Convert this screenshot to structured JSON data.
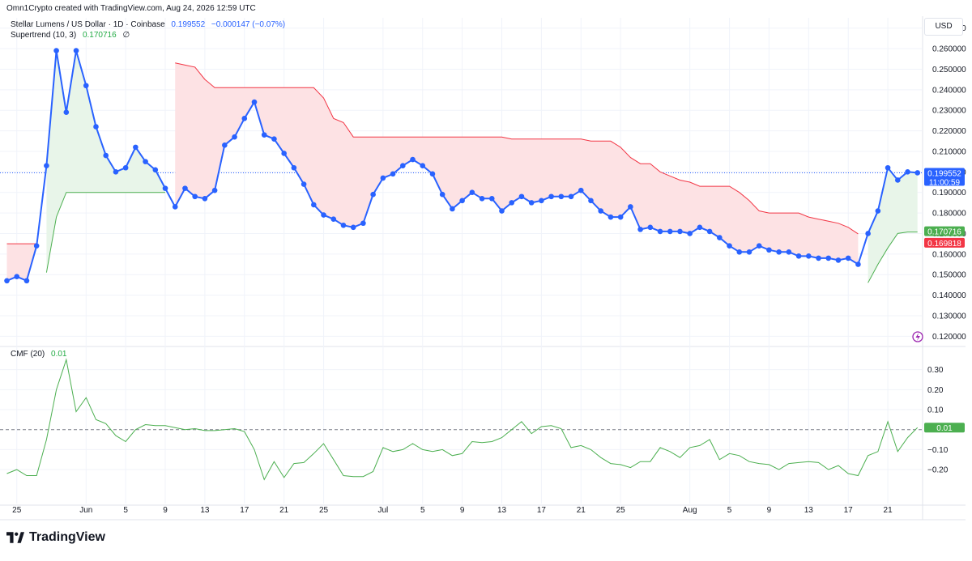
{
  "header": {
    "credit": "Omn1Crypto created with TradingView.com, Aug 24, 2026 12:59 UTC"
  },
  "legend": {
    "symbol": "Stellar Lumens / US Dollar · 1D · Coinbase",
    "price": "0.199552",
    "change": "−0.000147 (−0.07%)",
    "supertrend_label": "Supertrend (10, 3)",
    "supertrend_value": "0.170716",
    "supertrend_symbol": "∅",
    "cmf_label": "CMF (20)",
    "cmf_value": "0.01"
  },
  "currency": "USD",
  "price_tag": {
    "value": "0.199552",
    "countdown": "11:00:59"
  },
  "supertrend_tags": {
    "up": "0.170716",
    "down": "0.169818"
  },
  "cmf_tag": "0.01",
  "brand": "TradingView",
  "icons": {
    "brand_logo": "tradingview-logo-icon",
    "alert": "lightning-icon"
  },
  "colors": {
    "price_line": "#2962ff",
    "supertrend_up": "#4caf50",
    "supertrend_down": "#f23645",
    "fill_up": "#e8f5e9",
    "fill_down": "#fde2e4",
    "cmf": "#4caf50",
    "grid": "#f0f3fa"
  },
  "chart_data": [
    {
      "type": "line",
      "title": "Stellar Lumens / US Dollar · 1D · Coinbase",
      "y_axis_ticks": [
        "0.270000",
        "0.260000",
        "0.250000",
        "0.240000",
        "0.230000",
        "0.220000",
        "0.210000",
        "0.200000",
        "0.190000",
        "0.180000",
        "0.170000",
        "0.160000",
        "0.150000",
        "0.140000",
        "0.130000",
        "0.120000"
      ],
      "ylim": [
        0.115,
        0.275
      ],
      "x_axis_ticks": [
        "25",
        "Jun",
        "5",
        "9",
        "13",
        "17",
        "21",
        "25",
        "Jul",
        "5",
        "9",
        "13",
        "17",
        "21",
        "25",
        "Aug",
        "5",
        "9",
        "13",
        "17",
        "21"
      ],
      "x_range_days": [
        "2026-05-24",
        "2026-08-24"
      ],
      "grid": true,
      "series": [
        {
          "name": "Stellar Lumens / US Dollar",
          "x": [
            "2026-05-24",
            "2026-05-25",
            "2026-05-26",
            "2026-05-27",
            "2026-05-28",
            "2026-05-29",
            "2026-05-30",
            "2026-05-31",
            "2026-06-01",
            "2026-06-02",
            "2026-06-03",
            "2026-06-04",
            "2026-06-05",
            "2026-06-06",
            "2026-06-07",
            "2026-06-08",
            "2026-06-09",
            "2026-06-10",
            "2026-06-11",
            "2026-06-12",
            "2026-06-13",
            "2026-06-14",
            "2026-06-15",
            "2026-06-16",
            "2026-06-17",
            "2026-06-18",
            "2026-06-19",
            "2026-06-20",
            "2026-06-21",
            "2026-06-22",
            "2026-06-23",
            "2026-06-24",
            "2026-06-25",
            "2026-06-26",
            "2026-06-27",
            "2026-06-28",
            "2026-06-29",
            "2026-06-30",
            "2026-07-01",
            "2026-07-02",
            "2026-07-03",
            "2026-07-04",
            "2026-07-05",
            "2026-07-06",
            "2026-07-07",
            "2026-07-08",
            "2026-07-09",
            "2026-07-10",
            "2026-07-11",
            "2026-07-12",
            "2026-07-13",
            "2026-07-14",
            "2026-07-15",
            "2026-07-16",
            "2026-07-17",
            "2026-07-18",
            "2026-07-19",
            "2026-07-20",
            "2026-07-21",
            "2026-07-22",
            "2026-07-23",
            "2026-07-24",
            "2026-07-25",
            "2026-07-26",
            "2026-07-27",
            "2026-07-28",
            "2026-07-29",
            "2026-07-30",
            "2026-07-31",
            "2026-08-01",
            "2026-08-02",
            "2026-08-03",
            "2026-08-04",
            "2026-08-05",
            "2026-08-06",
            "2026-08-07",
            "2026-08-08",
            "2026-08-09",
            "2026-08-10",
            "2026-08-11",
            "2026-08-12",
            "2026-08-13",
            "2026-08-14",
            "2026-08-15",
            "2026-08-16",
            "2026-08-17",
            "2026-08-18",
            "2026-08-19",
            "2026-08-20",
            "2026-08-21",
            "2026-08-22",
            "2026-08-23",
            "2026-08-24"
          ],
          "values": [
            0.147,
            0.149,
            0.147,
            0.164,
            0.203,
            0.259,
            0.229,
            0.259,
            0.242,
            0.222,
            0.208,
            0.2,
            0.202,
            0.212,
            0.205,
            0.201,
            0.192,
            0.183,
            0.192,
            0.188,
            0.187,
            0.191,
            0.213,
            0.217,
            0.226,
            0.234,
            0.218,
            0.216,
            0.209,
            0.202,
            0.194,
            0.184,
            0.179,
            0.177,
            0.174,
            0.173,
            0.175,
            0.189,
            0.197,
            0.199,
            0.203,
            0.206,
            0.203,
            0.199,
            0.189,
            0.182,
            0.186,
            0.19,
            0.187,
            0.187,
            0.181,
            0.185,
            0.188,
            0.185,
            0.186,
            0.188,
            0.188,
            0.188,
            0.191,
            0.186,
            0.181,
            0.178,
            0.178,
            0.183,
            0.172,
            0.173,
            0.171,
            0.171,
            0.171,
            0.17,
            0.173,
            0.171,
            0.168,
            0.164,
            0.161,
            0.161,
            0.164,
            0.162,
            0.161,
            0.161,
            0.159,
            0.159,
            0.158,
            0.158,
            0.157,
            0.158,
            0.155,
            0.17,
            0.181,
            0.202,
            0.196,
            0.2,
            0.199552
          ]
        },
        {
          "name": "Supertrend (10, 3)",
          "segments": [
            {
              "trend": "down",
              "x": [
                "2026-05-24",
                "2026-05-25",
                "2026-05-26",
                "2026-05-27"
              ],
              "values": [
                0.165,
                0.165,
                0.165,
                0.165
              ]
            },
            {
              "trend": "up",
              "x": [
                "2026-05-28",
                "2026-05-29",
                "2026-05-30",
                "2026-05-31",
                "2026-06-01",
                "2026-06-02",
                "2026-06-03",
                "2026-06-04",
                "2026-06-05",
                "2026-06-06",
                "2026-06-07",
                "2026-06-08",
                "2026-06-09"
              ],
              "values": [
                0.151,
                0.178,
                0.19,
                0.19,
                0.19,
                0.19,
                0.19,
                0.19,
                0.19,
                0.19,
                0.19,
                0.19,
                0.19
              ]
            },
            {
              "trend": "down",
              "x": [
                "2026-06-10",
                "2026-06-11",
                "2026-06-12",
                "2026-06-13",
                "2026-06-14",
                "2026-06-15",
                "2026-06-16",
                "2026-06-17",
                "2026-06-18",
                "2026-06-19",
                "2026-06-20",
                "2026-06-21",
                "2026-06-22",
                "2026-06-23",
                "2026-06-24",
                "2026-06-25",
                "2026-06-26",
                "2026-06-27",
                "2026-06-28",
                "2026-06-29",
                "2026-06-30",
                "2026-07-01",
                "2026-07-02",
                "2026-07-03",
                "2026-07-04",
                "2026-07-05",
                "2026-07-06",
                "2026-07-07",
                "2026-07-08",
                "2026-07-09",
                "2026-07-10",
                "2026-07-11",
                "2026-07-12",
                "2026-07-13",
                "2026-07-14",
                "2026-07-15",
                "2026-07-16",
                "2026-07-17",
                "2026-07-18",
                "2026-07-19",
                "2026-07-20",
                "2026-07-21",
                "2026-07-22",
                "2026-07-23",
                "2026-07-24",
                "2026-07-25",
                "2026-07-26",
                "2026-07-27",
                "2026-07-28",
                "2026-07-29",
                "2026-07-30",
                "2026-07-31",
                "2026-08-01",
                "2026-08-02",
                "2026-08-03",
                "2026-08-04",
                "2026-08-05",
                "2026-08-06",
                "2026-08-07",
                "2026-08-08",
                "2026-08-09",
                "2026-08-10",
                "2026-08-11",
                "2026-08-12",
                "2026-08-13",
                "2026-08-14",
                "2026-08-15",
                "2026-08-16",
                "2026-08-17",
                "2026-08-18"
              ],
              "values": [
                0.253,
                0.252,
                0.251,
                0.245,
                0.241,
                0.241,
                0.241,
                0.241,
                0.241,
                0.241,
                0.241,
                0.241,
                0.241,
                0.241,
                0.241,
                0.236,
                0.226,
                0.224,
                0.217,
                0.217,
                0.217,
                0.217,
                0.217,
                0.217,
                0.217,
                0.217,
                0.217,
                0.217,
                0.217,
                0.217,
                0.217,
                0.217,
                0.217,
                0.217,
                0.216,
                0.216,
                0.216,
                0.216,
                0.216,
                0.216,
                0.216,
                0.216,
                0.215,
                0.215,
                0.215,
                0.212,
                0.207,
                0.204,
                0.204,
                0.2,
                0.198,
                0.196,
                0.195,
                0.193,
                0.193,
                0.193,
                0.193,
                0.19,
                0.186,
                0.181,
                0.18,
                0.18,
                0.18,
                0.18,
                0.178,
                0.177,
                0.176,
                0.175,
                0.173,
                0.169818
              ]
            },
            {
              "trend": "up",
              "x": [
                "2026-08-19",
                "2026-08-20",
                "2026-08-21",
                "2026-08-22",
                "2026-08-23",
                "2026-08-24"
              ],
              "values": [
                0.146,
                0.155,
                0.163,
                0.17,
                0.170716,
                0.170716
              ]
            }
          ]
        }
      ]
    },
    {
      "type": "line",
      "title": "CMF (20)",
      "y_axis_ticks": [
        "0.30",
        "0.20",
        "0.10",
        "−0.10",
        "−0.20"
      ],
      "ylim": [
        -0.37,
        0.4
      ],
      "zero_line": true,
      "series": [
        {
          "name": "CMF (20)",
          "x": [
            "2026-05-24",
            "2026-05-25",
            "2026-05-26",
            "2026-05-27",
            "2026-05-28",
            "2026-05-29",
            "2026-05-30",
            "2026-05-31",
            "2026-06-01",
            "2026-06-02",
            "2026-06-03",
            "2026-06-04",
            "2026-06-05",
            "2026-06-06",
            "2026-06-07",
            "2026-06-08",
            "2026-06-09",
            "2026-06-10",
            "2026-06-11",
            "2026-06-12",
            "2026-06-13",
            "2026-06-14",
            "2026-06-15",
            "2026-06-16",
            "2026-06-17",
            "2026-06-18",
            "2026-06-19",
            "2026-06-20",
            "2026-06-21",
            "2026-06-22",
            "2026-06-23",
            "2026-06-24",
            "2026-06-25",
            "2026-06-26",
            "2026-06-27",
            "2026-06-28",
            "2026-06-29",
            "2026-06-30",
            "2026-07-01",
            "2026-07-02",
            "2026-07-03",
            "2026-07-04",
            "2026-07-05",
            "2026-07-06",
            "2026-07-07",
            "2026-07-08",
            "2026-07-09",
            "2026-07-10",
            "2026-07-11",
            "2026-07-12",
            "2026-07-13",
            "2026-07-14",
            "2026-07-15",
            "2026-07-16",
            "2026-07-17",
            "2026-07-18",
            "2026-07-19",
            "2026-07-20",
            "2026-07-21",
            "2026-07-22",
            "2026-07-23",
            "2026-07-24",
            "2026-07-25",
            "2026-07-26",
            "2026-07-27",
            "2026-07-28",
            "2026-07-29",
            "2026-07-30",
            "2026-07-31",
            "2026-08-01",
            "2026-08-02",
            "2026-08-03",
            "2026-08-04",
            "2026-08-05",
            "2026-08-06",
            "2026-08-07",
            "2026-08-08",
            "2026-08-09",
            "2026-08-10",
            "2026-08-11",
            "2026-08-12",
            "2026-08-13",
            "2026-08-14",
            "2026-08-15",
            "2026-08-16",
            "2026-08-17",
            "2026-08-18",
            "2026-08-19",
            "2026-08-20",
            "2026-08-21",
            "2026-08-22",
            "2026-08-23",
            "2026-08-24"
          ],
          "values": [
            -0.22,
            -0.2,
            -0.23,
            -0.23,
            -0.05,
            0.2,
            0.35,
            0.09,
            0.16,
            0.05,
            0.03,
            -0.03,
            -0.06,
            0.0,
            0.025,
            0.02,
            0.02,
            0.01,
            0.0,
            0.005,
            -0.005,
            -0.005,
            0.0,
            0.005,
            -0.01,
            -0.1,
            -0.25,
            -0.16,
            -0.24,
            -0.17,
            -0.165,
            -0.12,
            -0.07,
            -0.15,
            -0.23,
            -0.235,
            -0.235,
            -0.21,
            -0.09,
            -0.11,
            -0.1,
            -0.07,
            -0.1,
            -0.11,
            -0.1,
            -0.13,
            -0.12,
            -0.06,
            -0.065,
            -0.06,
            -0.04,
            0.0,
            0.04,
            -0.02,
            0.015,
            0.02,
            0.005,
            -0.09,
            -0.08,
            -0.1,
            -0.14,
            -0.17,
            -0.175,
            -0.19,
            -0.16,
            -0.16,
            -0.09,
            -0.11,
            -0.14,
            -0.09,
            -0.08,
            -0.05,
            -0.15,
            -0.12,
            -0.13,
            -0.16,
            -0.17,
            -0.175,
            -0.2,
            -0.17,
            -0.165,
            -0.16,
            -0.165,
            -0.2,
            -0.18,
            -0.22,
            -0.23,
            -0.13,
            -0.11,
            0.04,
            -0.11,
            -0.04,
            0.01
          ]
        }
      ]
    }
  ]
}
